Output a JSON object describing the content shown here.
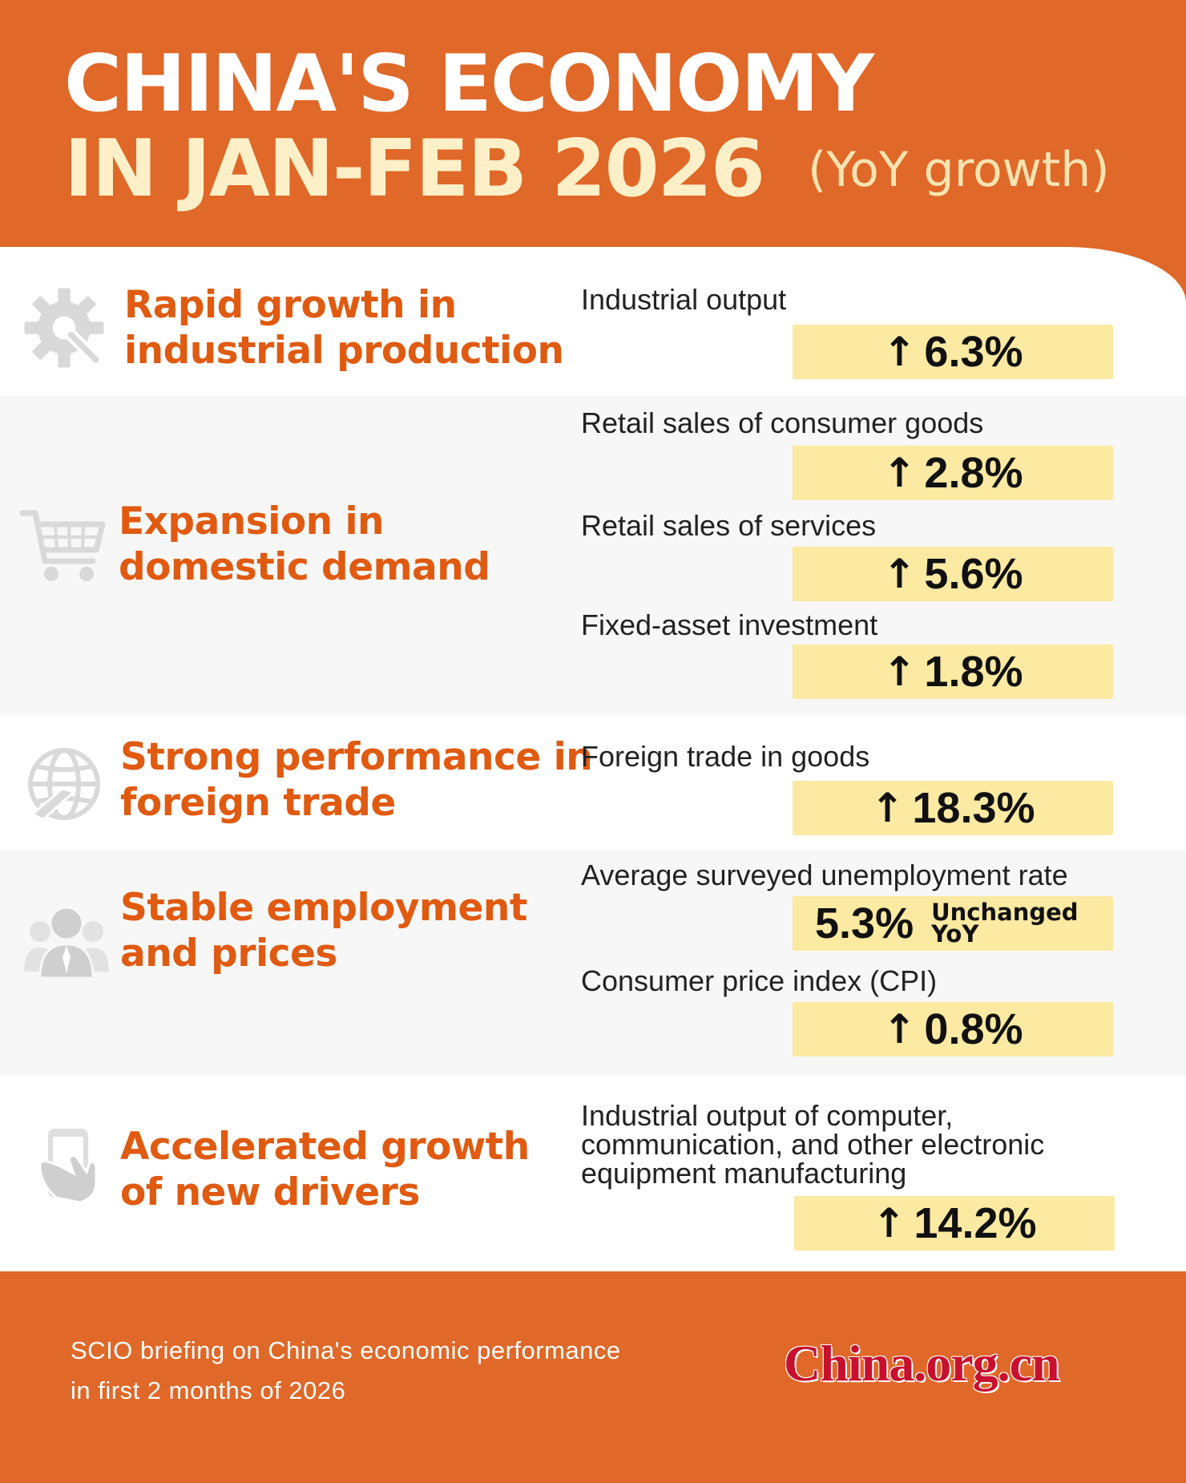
{
  "header": {
    "title_line1": "CHINA'S ECONOMY",
    "title_line2": "IN JAN-FEB 2026",
    "subtitle": "(YoY growth)"
  },
  "sections": [
    {
      "icon": "gear-wrench-icon",
      "title": [
        "Rapid growth in",
        "industrial production"
      ],
      "indicators": [
        {
          "label": "Industrial output",
          "arrow": "↑",
          "value": "6.3%"
        }
      ]
    },
    {
      "icon": "shopping-cart-icon",
      "title": [
        "Expansion in",
        "domestic demand"
      ],
      "indicators": [
        {
          "label": "Retail sales of consumer goods",
          "arrow": "↑",
          "value": "2.8%"
        },
        {
          "label": "Retail sales of services",
          "arrow": "↑",
          "value": "5.6%"
        },
        {
          "label": "Fixed-asset investment",
          "arrow": "↑",
          "value": "1.8%"
        }
      ]
    },
    {
      "icon": "globe-plane-icon",
      "title": [
        "Strong performance in",
        "foreign trade"
      ],
      "indicators": [
        {
          "label": "Foreign trade in goods",
          "arrow": "↑",
          "value": "18.3%"
        }
      ]
    },
    {
      "icon": "employees-icon",
      "title": [
        "Stable employment",
        "and prices"
      ],
      "indicators": [
        {
          "label": "Average surveyed unemployment rate",
          "value": "5.3%",
          "note": [
            "Unchanged",
            "YoY"
          ]
        },
        {
          "label": "Consumer price index (CPI)",
          "arrow": "↑",
          "value": "0.8%"
        }
      ]
    },
    {
      "icon": "smartphone-hand-icon",
      "title": [
        "Accelerated growth",
        "of new drivers"
      ],
      "indicators": [
        {
          "label": [
            "Industrial output of computer,",
            "communication, and other electronic",
            "equipment manufacturing"
          ],
          "arrow": "↑",
          "value": "14.2%"
        }
      ]
    }
  ],
  "footer": {
    "source_line1": "SCIO briefing on China's economic performance",
    "source_line2": "in first 2 months of 2026",
    "logo": "China.org.cn"
  },
  "colors": {
    "brand_orange": "#e06828",
    "section_title": "#e05a10",
    "value_box": "#fce9a2",
    "logo_red": "#c8102e"
  }
}
